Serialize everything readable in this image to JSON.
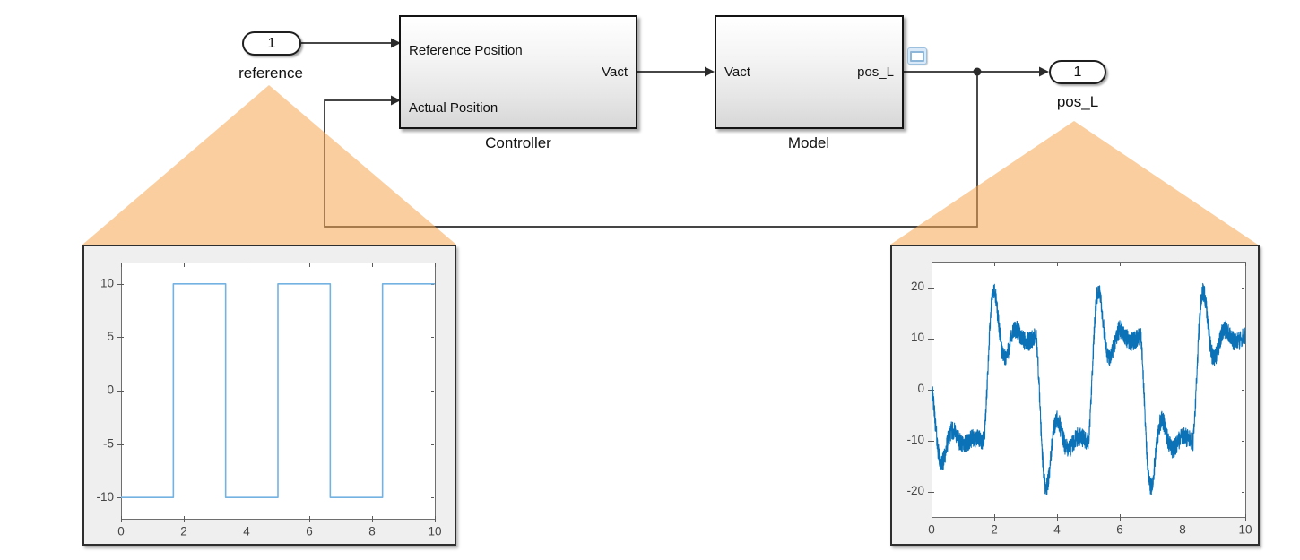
{
  "diagram": {
    "inport": {
      "number": "1",
      "label": "reference"
    },
    "outport": {
      "number": "1",
      "label": "pos_L"
    },
    "controller_block": {
      "caption": "Controller",
      "input_port_1": "Reference Position",
      "input_port_2": "Actual Position",
      "output_port_1": "Vact"
    },
    "model_block": {
      "caption": "Model",
      "input_port_1": "Vact",
      "output_port_1": "pos_L"
    },
    "badge": "signal-viewer-scope",
    "wire_color": "#2b2b2b",
    "callout_fill": "rgba(245,166,80,0.55)"
  },
  "chart_data": [
    {
      "type": "line",
      "title": "reference signal (zoom callout of 'reference' inport)",
      "x": [
        0,
        1.667,
        1.667,
        3.333,
        3.333,
        5,
        5,
        6.667,
        6.667,
        8.333,
        8.333,
        10
      ],
      "y": [
        -10,
        -10,
        10,
        10,
        -10,
        -10,
        10,
        10,
        -10,
        -10,
        10,
        10
      ],
      "xlim": [
        0,
        10
      ],
      "ylim": [
        -12,
        12
      ],
      "xticks": [
        0,
        2,
        4,
        6,
        8,
        10
      ],
      "yticks": [
        -10,
        -5,
        0,
        5,
        10
      ],
      "line_color": "#74b2e2",
      "line_width": 1.6,
      "grid": false,
      "legend": "none",
      "description": "square wave, amplitude +/-10, period 3.333 s, starts low"
    },
    {
      "type": "line",
      "title": "pos_L response (zoom callout of 'pos_L' outport)",
      "generator": "noisy_step_response",
      "initial_value": 0,
      "transitions": [
        0,
        1.667,
        3.333,
        5,
        6.667,
        8.333
      ],
      "targets": [
        -10,
        10,
        -10,
        10,
        -10,
        10
      ],
      "overshoot_peaks": [
        -16,
        19,
        -19,
        19,
        -20,
        19.5
      ],
      "settle_levels": [
        -10,
        10,
        -10,
        10,
        -10,
        10
      ],
      "noise_amplitude": 1.8,
      "noise_seed": 42,
      "tau": 0.42,
      "osc_period": 0.7,
      "dt": 0.004,
      "xlim": [
        0,
        10
      ],
      "ylim": [
        -25,
        25
      ],
      "xticks": [
        0,
        2,
        4,
        6,
        8,
        10
      ],
      "yticks": [
        -20,
        -10,
        0,
        10,
        20
      ],
      "line_color": "#0b72b8",
      "line_width": 1.1,
      "grid": false,
      "legend": "none",
      "description": "noisy measured position tracking the square wave with ~45% overshoot at each step and +/-1.8 measurement noise"
    }
  ]
}
